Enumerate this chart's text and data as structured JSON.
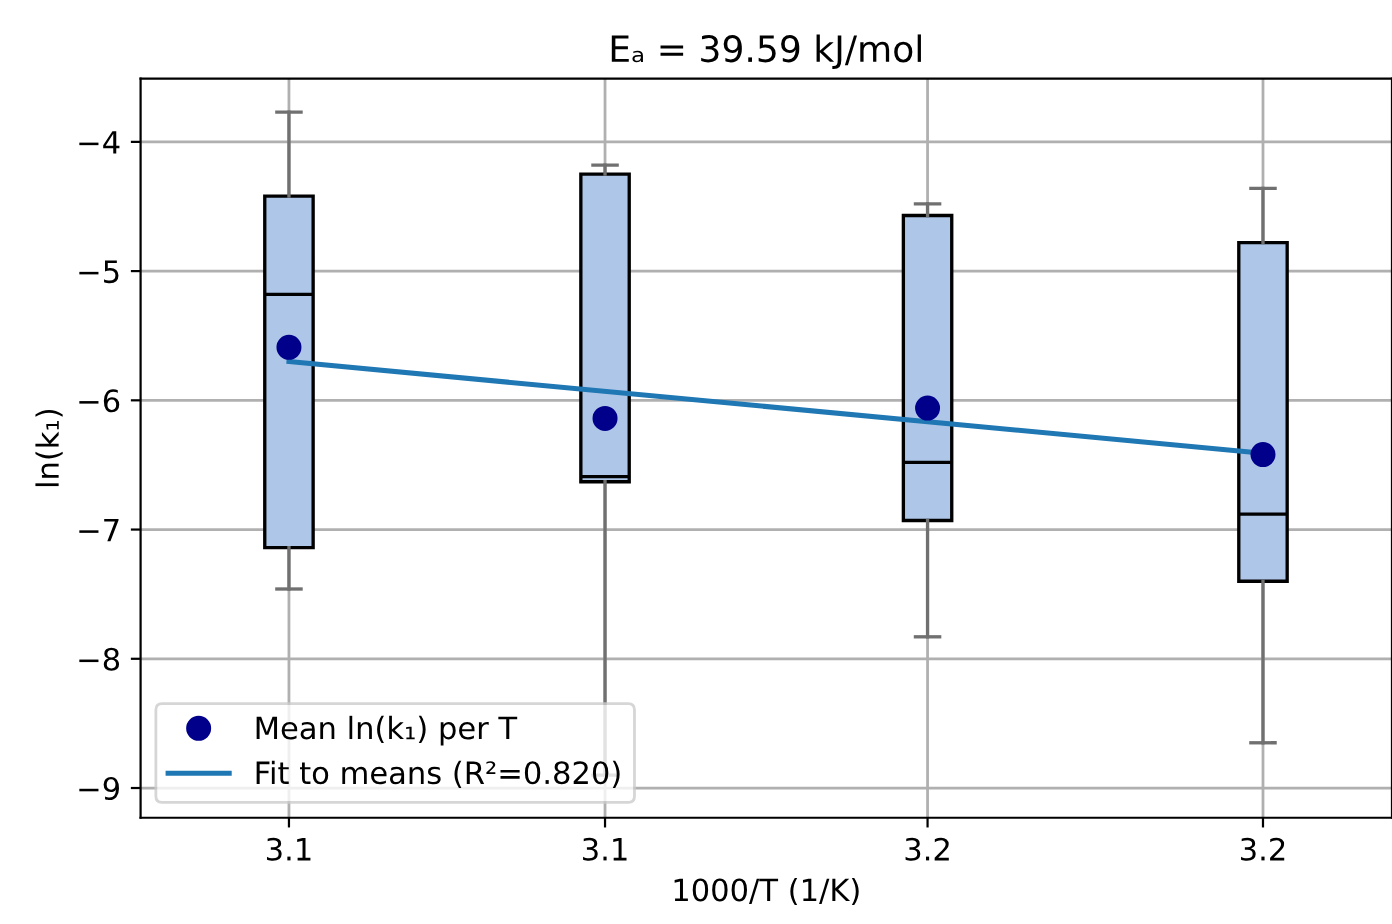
{
  "chart_data": {
    "type": "box",
    "title": "Eₐ = 39.59 kJ/mol",
    "xlabel": "1000/T (1/K)",
    "ylabel": "ln(k₁)",
    "x": [
      3.096,
      3.145,
      3.195,
      3.247
    ],
    "color": "#aec7e8",
    "boxes": [
      {
        "low": -7.46,
        "q1": -7.14,
        "median": -5.18,
        "q3": -4.42,
        "high": -3.77
      },
      {
        "low": -8.9,
        "q1": -6.63,
        "median": -6.59,
        "q3": -4.25,
        "high": -4.18
      },
      {
        "low": -7.83,
        "q1": -6.93,
        "median": -6.48,
        "q3": -4.57,
        "high": -4.48
      },
      {
        "low": -8.65,
        "q1": -7.4,
        "median": -6.88,
        "q3": -4.78,
        "high": -4.36
      }
    ],
    "series": [
      {
        "type": "scatter",
        "name": "Mean ln(k₁) per T",
        "color": "#00008b",
        "marker": "circle",
        "x": [
          3.096,
          3.145,
          3.195,
          3.247
        ],
        "values": [
          -5.59,
          -6.14,
          -6.06,
          -6.42
        ]
      },
      {
        "type": "line",
        "name": "Fit to means (R²=0.820)",
        "color": "#1f77b4",
        "x": [
          3.096,
          3.247
        ],
        "values": [
          -5.7,
          -6.41
        ]
      }
    ],
    "xlim": [
      3.073,
      3.267
    ],
    "ylim": [
      -9.23,
      -3.51
    ],
    "xticks": [
      {
        "value": 3.096,
        "label": "3.1"
      },
      {
        "value": 3.145,
        "label": "3.1"
      },
      {
        "value": 3.195,
        "label": "3.2"
      },
      {
        "value": 3.247,
        "label": "3.2"
      }
    ],
    "yticks": [
      {
        "value": -9,
        "label": "−9"
      },
      {
        "value": -8,
        "label": "−8"
      },
      {
        "value": -7,
        "label": "−7"
      },
      {
        "value": -6,
        "label": "−6"
      },
      {
        "value": -5,
        "label": "−5"
      },
      {
        "value": -4,
        "label": "−4"
      }
    ],
    "grid": true,
    "legend": "lower left"
  }
}
